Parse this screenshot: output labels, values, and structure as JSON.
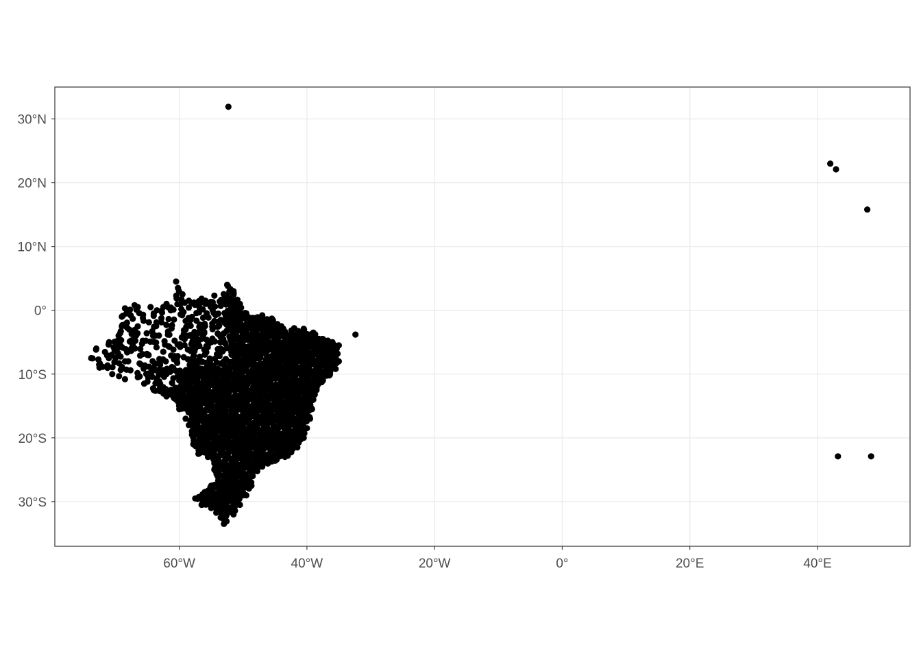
{
  "chart_data": {
    "type": "scatter",
    "projection": "equirectangular",
    "title": "",
    "xlabel": "",
    "ylabel": "",
    "xlim": [
      -79.5,
      54.5
    ],
    "ylim": [
      -37,
      35
    ],
    "grid": true,
    "point_color": "#000000",
    "panel_border_color": "#333333",
    "grid_color": "#ebebeb",
    "x_ticks": [
      {
        "value": -60,
        "label": "60°W"
      },
      {
        "value": -40,
        "label": "40°W"
      },
      {
        "value": -20,
        "label": "20°W"
      },
      {
        "value": 0,
        "label": "0°"
      },
      {
        "value": 20,
        "label": "20°E"
      },
      {
        "value": 40,
        "label": "40°E"
      }
    ],
    "y_ticks": [
      {
        "value": 30,
        "label": "30°N"
      },
      {
        "value": 20,
        "label": "20°N"
      },
      {
        "value": 10,
        "label": "10°N"
      },
      {
        "value": 0,
        "label": "0°"
      },
      {
        "value": -10,
        "label": "10°S"
      },
      {
        "value": -20,
        "label": "20°S"
      },
      {
        "value": -30,
        "label": "30°S"
      }
    ],
    "outlier_points": [
      {
        "lon": -52.3,
        "lat": 31.9
      },
      {
        "lon": -32.4,
        "lat": -3.8
      },
      {
        "lon": 42.0,
        "lat": 23.0
      },
      {
        "lon": 42.9,
        "lat": 22.1
      },
      {
        "lon": 47.8,
        "lat": 15.8
      },
      {
        "lon": 43.2,
        "lat": -22.9
      },
      {
        "lon": 48.4,
        "lat": -22.9
      }
    ],
    "main_cloud_lon_lat": [
      [
        -35.0,
        -5.5
      ],
      [
        -35.2,
        -6.8
      ],
      [
        -35.0,
        -8.0
      ],
      [
        -35.5,
        -9.2
      ],
      [
        -36.5,
        -10.2
      ],
      [
        -37.5,
        -11.0
      ],
      [
        -38.5,
        -12.5
      ],
      [
        -39.0,
        -14.0
      ],
      [
        -39.2,
        -15.5
      ],
      [
        -39.5,
        -17.0
      ],
      [
        -40.0,
        -18.5
      ],
      [
        -40.5,
        -20.0
      ],
      [
        -41.5,
        -21.5
      ],
      [
        -43.0,
        -22.8
      ],
      [
        -45.0,
        -23.6
      ],
      [
        -47.0,
        -24.5
      ],
      [
        -48.5,
        -26.0
      ],
      [
        -48.7,
        -27.5
      ],
      [
        -49.5,
        -29.0
      ],
      [
        -50.5,
        -30.5
      ],
      [
        -51.5,
        -32.0
      ],
      [
        -53.0,
        -33.5
      ],
      [
        -53.5,
        -32.5
      ],
      [
        -55.0,
        -31.0
      ],
      [
        -56.5,
        -30.5
      ],
      [
        -57.5,
        -29.5
      ],
      [
        -56.0,
        -28.5
      ],
      [
        -55.0,
        -27.5
      ],
      [
        -54.0,
        -26.0
      ],
      [
        -54.5,
        -25.0
      ],
      [
        -54.5,
        -24.0
      ],
      [
        -55.5,
        -23.0
      ],
      [
        -57.0,
        -22.5
      ],
      [
        -57.8,
        -21.0
      ],
      [
        -58.0,
        -19.5
      ],
      [
        -58.5,
        -18.0
      ],
      [
        -58.0,
        -16.5
      ],
      [
        -60.0,
        -15.5
      ],
      [
        -60.5,
        -14.0
      ],
      [
        -62.0,
        -13.5
      ],
      [
        -64.0,
        -12.5
      ],
      [
        -65.5,
        -11.5
      ],
      [
        -66.5,
        -10.5
      ],
      [
        -68.5,
        -10.8
      ],
      [
        -70.5,
        -10.0
      ],
      [
        -72.5,
        -9.0
      ],
      [
        -73.8,
        -7.5
      ],
      [
        -73.0,
        -6.0
      ],
      [
        -71.0,
        -5.0
      ],
      [
        -69.5,
        -4.0
      ],
      [
        -69.0,
        -2.5
      ],
      [
        -69.0,
        -1.0
      ],
      [
        -68.5,
        0.3
      ],
      [
        -67.0,
        0.8
      ],
      [
        -66.5,
        0.5
      ],
      [
        -64.5,
        0.5
      ],
      [
        -64.0,
        -0.5
      ],
      [
        -63.5,
        0.0
      ],
      [
        -62.5,
        0.5
      ],
      [
        -62.0,
        1.0
      ],
      [
        -60.5,
        4.5
      ],
      [
        -60.2,
        3.5
      ],
      [
        -59.5,
        2.5
      ],
      [
        -59.8,
        1.0
      ],
      [
        -58.5,
        1.5
      ],
      [
        -56.5,
        1.8
      ],
      [
        -54.5,
        2.3
      ],
      [
        -52.5,
        4.0
      ],
      [
        -51.5,
        3.0
      ],
      [
        -50.5,
        1.0
      ],
      [
        -49.5,
        -0.5
      ],
      [
        -48.5,
        -1.2
      ],
      [
        -47.0,
        -0.8
      ],
      [
        -45.5,
        -1.3
      ],
      [
        -44.0,
        -2.5
      ],
      [
        -42.0,
        -2.8
      ],
      [
        -40.5,
        -2.9
      ],
      [
        -39.0,
        -3.5
      ],
      [
        -37.5,
        -4.5
      ],
      [
        -36.0,
        -5.0
      ],
      [
        -40.0,
        -6.0
      ],
      [
        -42.0,
        -7.0
      ],
      [
        -44.0,
        -8.0
      ],
      [
        -46.0,
        -9.0
      ],
      [
        -48.0,
        -10.0
      ],
      [
        -50.0,
        -11.0
      ],
      [
        -52.0,
        -12.0
      ],
      [
        -54.0,
        -13.0
      ],
      [
        -56.0,
        -13.5
      ],
      [
        -58.0,
        -12.5
      ],
      [
        -60.0,
        -11.0
      ],
      [
        -62.0,
        -10.0
      ],
      [
        -64.0,
        -9.0
      ],
      [
        -66.0,
        -8.5
      ],
      [
        -68.0,
        -8.0
      ],
      [
        -70.0,
        -7.5
      ],
      [
        -38.0,
        -7.0
      ],
      [
        -40.0,
        -10.0
      ],
      [
        -42.0,
        -12.0
      ],
      [
        -44.0,
        -14.0
      ],
      [
        -46.0,
        -16.0
      ],
      [
        -48.0,
        -18.0
      ],
      [
        -50.0,
        -20.0
      ],
      [
        -52.0,
        -22.0
      ],
      [
        -41.0,
        -15.0
      ],
      [
        -43.0,
        -18.0
      ],
      [
        -45.0,
        -20.0
      ],
      [
        -47.0,
        -22.0
      ],
      [
        -49.0,
        -24.0
      ],
      [
        -51.0,
        -25.5
      ],
      [
        -52.5,
        -27.0
      ],
      [
        -52.0,
        -29.5
      ],
      [
        -50.5,
        -28.5
      ],
      [
        -53.0,
        -30.0
      ],
      [
        -46.0,
        -5.0
      ],
      [
        -48.0,
        -4.5
      ],
      [
        -44.5,
        -5.5
      ],
      [
        -41.5,
        -5.0
      ],
      [
        -38.5,
        -5.8
      ],
      [
        -37.0,
        -8.5
      ],
      [
        -39.5,
        -8.0
      ],
      [
        -43.5,
        -10.5
      ],
      [
        -45.5,
        -12.5
      ],
      [
        -47.5,
        -14.5
      ],
      [
        -49.5,
        -16.0
      ],
      [
        -51.5,
        -17.5
      ],
      [
        -53.5,
        -19.0
      ],
      [
        -55.5,
        -20.5
      ],
      [
        -54.0,
        -16.5
      ],
      [
        -52.0,
        -14.5
      ],
      [
        -50.0,
        -13.0
      ],
      [
        -48.5,
        -7.5
      ],
      [
        -50.5,
        -9.0
      ],
      [
        -47.0,
        -12.0
      ],
      [
        -41.5,
        -9.0
      ],
      [
        -43.0,
        -6.0
      ],
      [
        -45.0,
        -3.5
      ],
      [
        -47.5,
        -2.5
      ],
      [
        -50.0,
        -3.0
      ],
      [
        -52.0,
        -4.5
      ],
      [
        -55.0,
        -5.0
      ],
      [
        -57.5,
        -6.0
      ],
      [
        -60.0,
        -5.5
      ],
      [
        -62.5,
        -6.5
      ],
      [
        -65.0,
        -7.0
      ],
      [
        -67.5,
        -6.0
      ],
      [
        -59.0,
        -3.0
      ],
      [
        -56.0,
        -2.5
      ],
      [
        -53.5,
        -1.5
      ],
      [
        -60.5,
        -9.5
      ],
      [
        -63.0,
        -11.5
      ],
      [
        -57.0,
        -10.0
      ],
      [
        -55.0,
        -9.0
      ],
      [
        -53.0,
        -8.0
      ],
      [
        -51.5,
        -6.5
      ],
      [
        -57.5,
        -16.0
      ],
      [
        -56.0,
        -18.0
      ],
      [
        -59.0,
        -17.0
      ],
      [
        -50.5,
        -22.5
      ],
      [
        -48.0,
        -20.5
      ],
      [
        -46.0,
        -21.5
      ],
      [
        -44.0,
        -22.0
      ],
      [
        -42.0,
        -20.0
      ],
      [
        -42.5,
        -16.5
      ],
      [
        -39.8,
        -12.0
      ],
      [
        -38.2,
        -10.5
      ],
      [
        -44.5,
        -16.5
      ],
      [
        -46.5,
        -18.5
      ]
    ]
  }
}
